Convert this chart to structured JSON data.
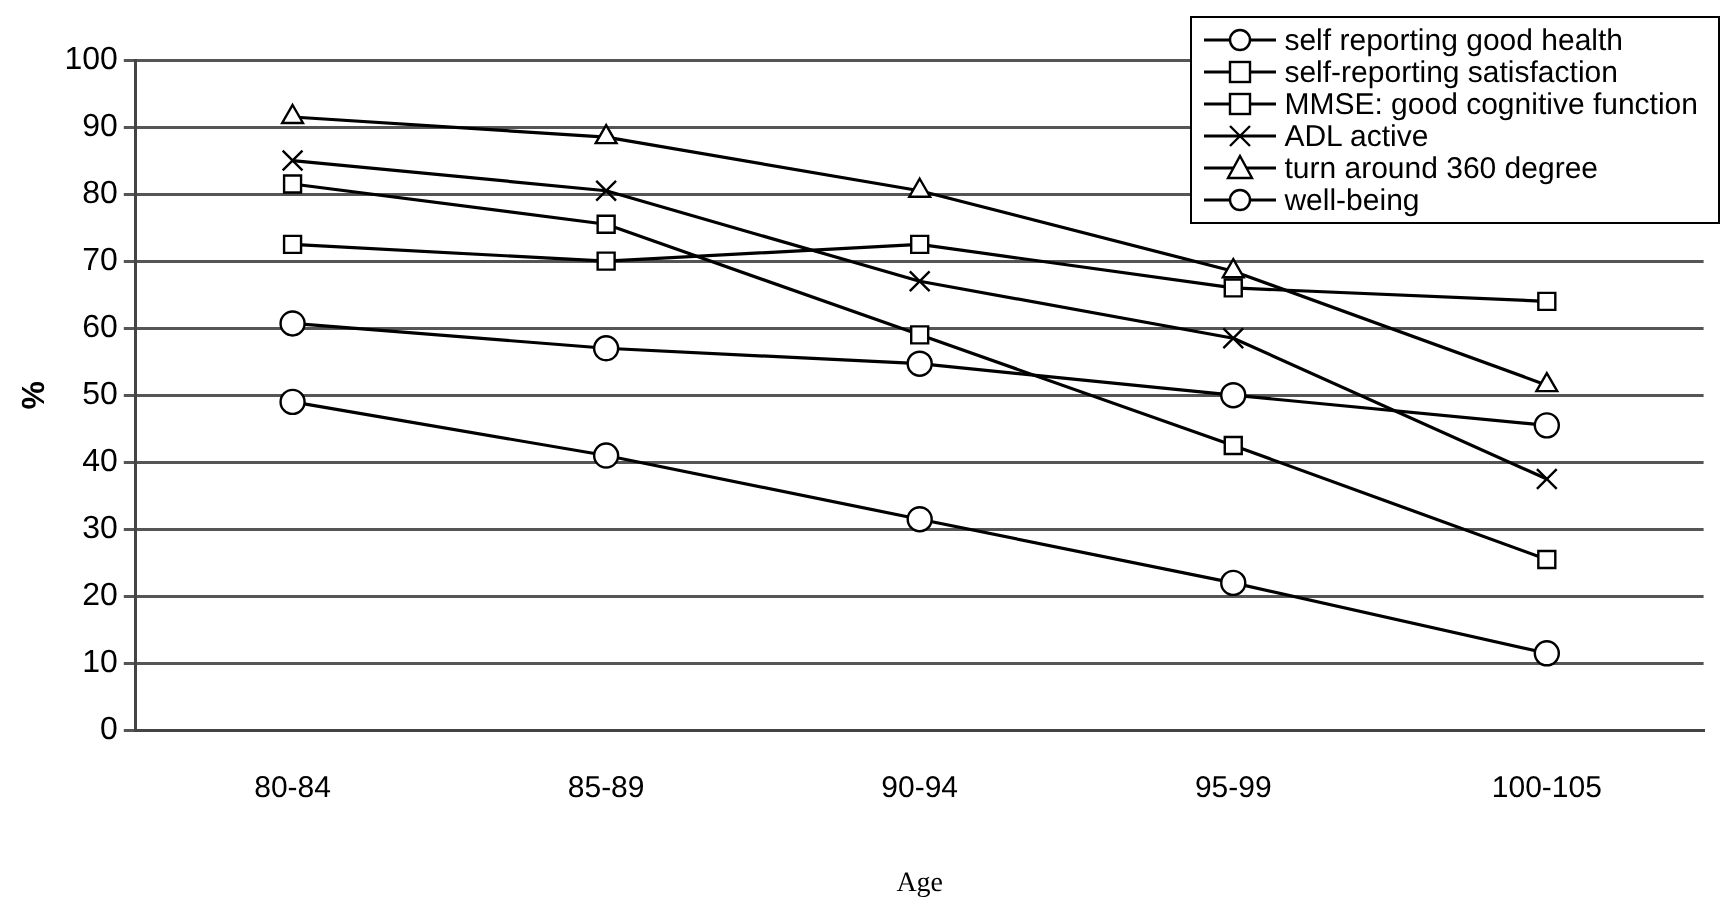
{
  "chart_data": {
    "type": "line",
    "xlabel": "Age",
    "ylabel": "%",
    "categories": [
      "80-84",
      "85-89",
      "90-94",
      "95-99",
      "100-105"
    ],
    "ylim": [
      0,
      100
    ],
    "yticks": [
      0,
      10,
      20,
      30,
      40,
      50,
      60,
      70,
      80,
      90,
      100
    ],
    "grid": "y",
    "legend": "top right",
    "line_style": "solid",
    "series": [
      {
        "name": "self reporting good health",
        "color": "#000000",
        "marker": "circle",
        "values": [
          60.7,
          57,
          54.7,
          50,
          45.5
        ]
      },
      {
        "name": "self-reporting satisfaction",
        "color": "#000000",
        "marker": "square",
        "values": [
          72.5,
          70,
          72.5,
          66,
          64
        ]
      },
      {
        "name": "MMSE: good cognitive function",
        "color": "#000000",
        "marker": "square",
        "values": [
          81.5,
          75.5,
          59,
          42.5,
          25.5
        ]
      },
      {
        "name": "ADL active",
        "color": "#000000",
        "marker": "cross",
        "values": [
          85,
          80.5,
          67,
          58.5,
          37.5
        ]
      },
      {
        "name": "turn around 360 degree",
        "color": "#000000",
        "marker": "triangle",
        "values": [
          91.5,
          88.5,
          80.5,
          68.5,
          51.5
        ]
      },
      {
        "name": "well-being",
        "color": "#000000",
        "marker": "circle",
        "values": [
          49,
          41,
          31.5,
          22,
          11.5
        ]
      }
    ]
  }
}
